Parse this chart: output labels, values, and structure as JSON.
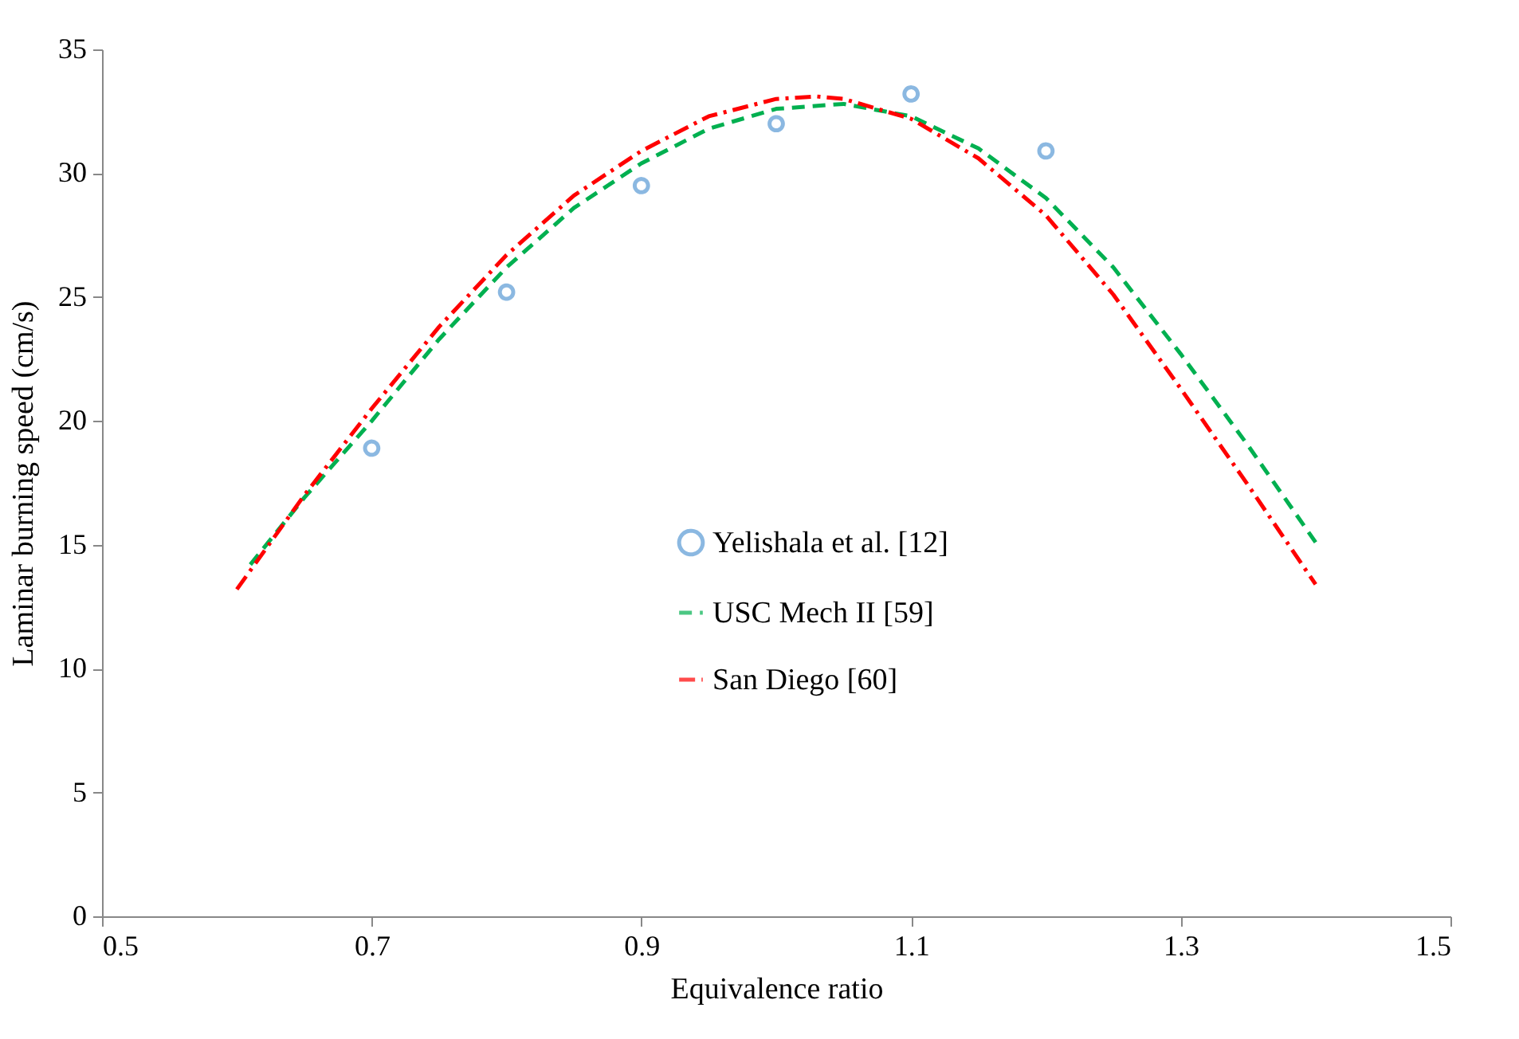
{
  "chart_data": {
    "type": "line",
    "xlabel": "Equivalence ratio",
    "ylabel": "Laminar burning speed (cm/s)",
    "xlim": [
      0.5,
      1.5
    ],
    "xticks": [
      0.5,
      0.7,
      0.9,
      1.1,
      1.3,
      1.5
    ],
    "ylim": [
      0,
      35
    ],
    "yticks": [
      0,
      5,
      10,
      15,
      20,
      25,
      30,
      35
    ],
    "grid": false,
    "legend": "bottom",
    "series": [
      {
        "name": "Yelishala et al. [12]",
        "type": "scatter",
        "marker": "circle",
        "color": "#5b9bd5",
        "x": [
          0.7,
          0.8,
          0.9,
          1.0,
          1.1,
          1.2
        ],
        "values": [
          18.9,
          25.2,
          29.5,
          32.0,
          33.2,
          30.9
        ]
      },
      {
        "name": "USC Mech II [59]",
        "line_style": "dashed",
        "color": "#00b050",
        "x": [
          0.61,
          0.65,
          0.7,
          0.75,
          0.8,
          0.85,
          0.9,
          0.95,
          1.0,
          1.05,
          1.1,
          1.15,
          1.2,
          1.25,
          1.3,
          1.35,
          1.4
        ],
        "values": [
          14.2,
          16.9,
          20.0,
          23.3,
          26.2,
          28.6,
          30.4,
          31.8,
          32.6,
          32.8,
          32.3,
          31.0,
          29.0,
          26.2,
          22.7,
          19.0,
          15.1
        ]
      },
      {
        "name": "San Diego [60]",
        "line_style": "dashdot",
        "color": "#ff0000",
        "x": [
          0.6,
          0.65,
          0.7,
          0.75,
          0.8,
          0.85,
          0.9,
          0.95,
          1.0,
          1.03,
          1.05,
          1.1,
          1.15,
          1.2,
          1.25,
          1.3,
          1.35,
          1.4
        ],
        "values": [
          13.2,
          17.0,
          20.5,
          23.8,
          26.7,
          29.1,
          30.9,
          32.3,
          33.0,
          33.1,
          33.0,
          32.2,
          30.6,
          28.3,
          25.1,
          21.3,
          17.4,
          13.4
        ]
      }
    ]
  }
}
